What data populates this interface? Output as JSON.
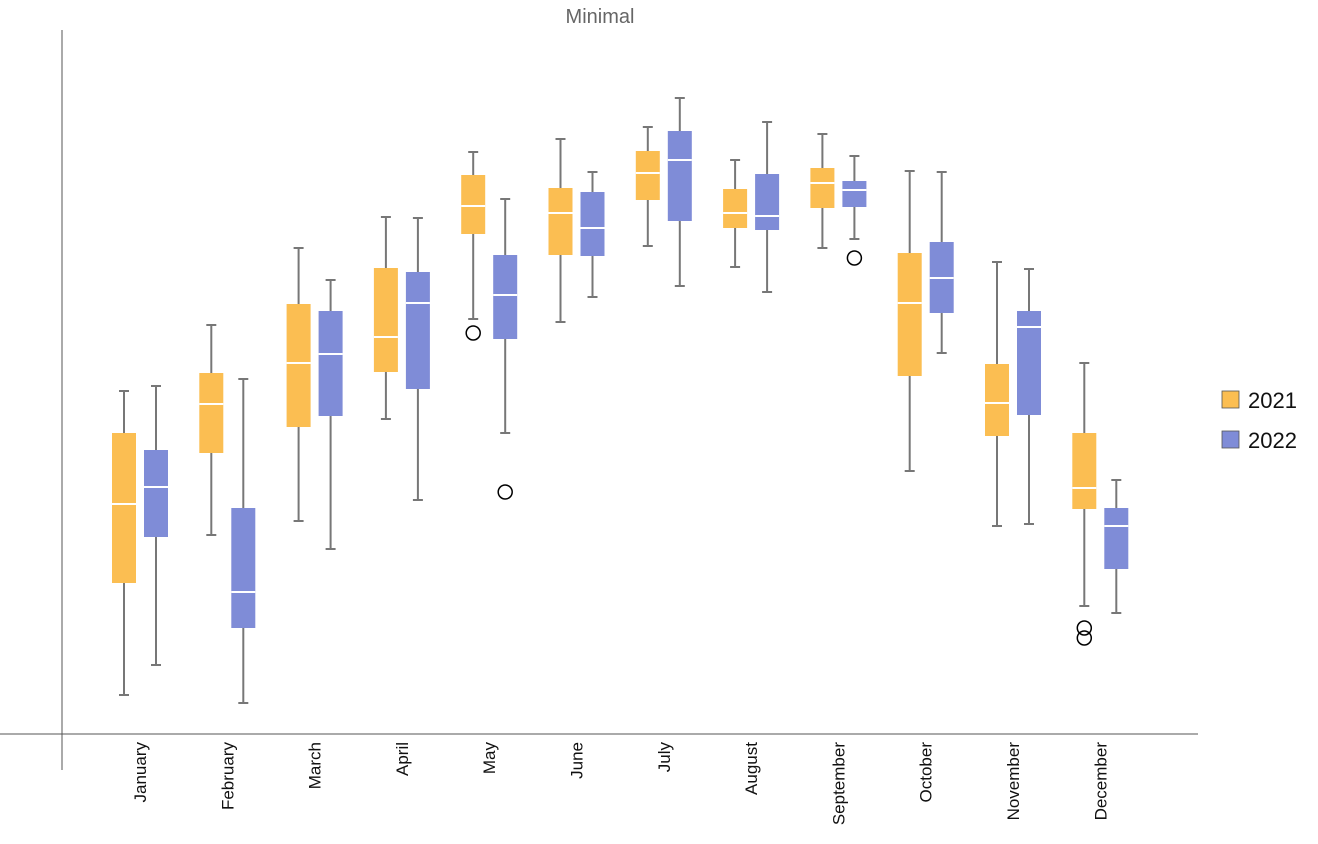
{
  "chart_data": {
    "type": "boxplot",
    "title": "Minimal",
    "xlabel": "",
    "ylabel": "",
    "ylim": [
      0,
      70.4
    ],
    "grid": false,
    "legend_position": "right",
    "categories": [
      "January",
      "February",
      "March",
      "April",
      "May",
      "June",
      "July",
      "August",
      "September",
      "October",
      "November",
      "December"
    ],
    "series": [
      {
        "name": "2021",
        "color": "#FBBE52",
        "boxes": [
          {
            "whisker_high": 34.3,
            "q3": 30.1,
            "median": 23.0,
            "q1": 15.1,
            "whisker_low": 3.9,
            "outliers": []
          },
          {
            "whisker_high": 40.9,
            "q3": 36.1,
            "median": 33.0,
            "q1": 28.1,
            "whisker_low": 19.9,
            "outliers": []
          },
          {
            "whisker_high": 48.6,
            "q3": 43.0,
            "median": 37.1,
            "q1": 30.7,
            "whisker_low": 21.3,
            "outliers": []
          },
          {
            "whisker_high": 51.7,
            "q3": 46.6,
            "median": 39.7,
            "q1": 36.2,
            "whisker_low": 31.5,
            "outliers": []
          },
          {
            "whisker_high": 58.2,
            "q3": 55.9,
            "median": 52.8,
            "q1": 50.0,
            "whisker_low": 41.5,
            "outliers": [
              40.1
            ]
          },
          {
            "whisker_high": 59.5,
            "q3": 54.6,
            "median": 52.1,
            "q1": 47.9,
            "whisker_low": 41.2,
            "outliers": []
          },
          {
            "whisker_high": 60.7,
            "q3": 58.3,
            "median": 56.1,
            "q1": 53.4,
            "whisker_low": 48.8,
            "outliers": []
          },
          {
            "whisker_high": 57.4,
            "q3": 54.5,
            "median": 52.1,
            "q1": 50.6,
            "whisker_low": 46.7,
            "outliers": []
          },
          {
            "whisker_high": 60.0,
            "q3": 56.6,
            "median": 55.1,
            "q1": 52.6,
            "whisker_low": 48.6,
            "outliers": []
          },
          {
            "whisker_high": 56.3,
            "q3": 48.1,
            "median": 43.1,
            "q1": 35.8,
            "whisker_low": 26.3,
            "outliers": []
          },
          {
            "whisker_high": 47.2,
            "q3": 37.0,
            "median": 33.1,
            "q1": 29.8,
            "whisker_low": 20.8,
            "outliers": []
          },
          {
            "whisker_high": 37.1,
            "q3": 30.1,
            "median": 24.6,
            "q1": 22.5,
            "whisker_low": 12.8,
            "outliers": [
              10.6,
              9.6
            ]
          }
        ]
      },
      {
        "name": "2022",
        "color": "#7F8CD7",
        "boxes": [
          {
            "whisker_high": 34.8,
            "q3": 28.4,
            "median": 24.7,
            "q1": 19.7,
            "whisker_low": 6.9,
            "outliers": []
          },
          {
            "whisker_high": 35.5,
            "q3": 22.6,
            "median": 14.2,
            "q1": 10.6,
            "whisker_low": 3.1,
            "outliers": []
          },
          {
            "whisker_high": 45.4,
            "q3": 42.3,
            "median": 38.0,
            "q1": 31.8,
            "whisker_low": 18.5,
            "outliers": []
          },
          {
            "whisker_high": 51.6,
            "q3": 46.2,
            "median": 43.1,
            "q1": 34.5,
            "whisker_low": 23.4,
            "outliers": []
          },
          {
            "whisker_high": 53.5,
            "q3": 47.9,
            "median": 43.9,
            "q1": 39.5,
            "whisker_low": 30.1,
            "outliers": [
              24.2
            ]
          },
          {
            "whisker_high": 56.2,
            "q3": 54.2,
            "median": 50.6,
            "q1": 47.8,
            "whisker_low": 43.7,
            "outliers": []
          },
          {
            "whisker_high": 63.6,
            "q3": 60.3,
            "median": 57.4,
            "q1": 51.3,
            "whisker_low": 44.8,
            "outliers": []
          },
          {
            "whisker_high": 61.2,
            "q3": 56.0,
            "median": 51.8,
            "q1": 50.4,
            "whisker_low": 44.2,
            "outliers": []
          },
          {
            "whisker_high": 57.8,
            "q3": 55.3,
            "median": 54.4,
            "q1": 52.7,
            "whisker_low": 49.5,
            "outliers": [
              47.6
            ]
          },
          {
            "whisker_high": 56.2,
            "q3": 49.2,
            "median": 45.6,
            "q1": 42.1,
            "whisker_low": 38.1,
            "outliers": []
          },
          {
            "whisker_high": 46.5,
            "q3": 42.3,
            "median": 40.7,
            "q1": 31.9,
            "whisker_low": 21.0,
            "outliers": []
          },
          {
            "whisker_high": 25.4,
            "q3": 22.6,
            "median": 20.8,
            "q1": 16.5,
            "whisker_low": 12.1,
            "outliers": []
          }
        ]
      }
    ]
  }
}
